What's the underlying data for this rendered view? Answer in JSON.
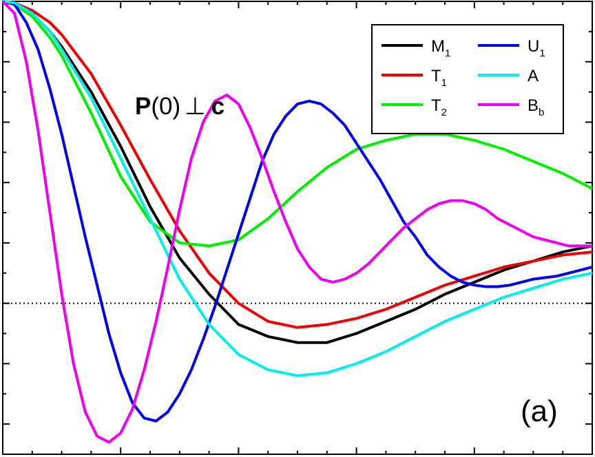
{
  "chart_data": {
    "type": "line",
    "title": "",
    "xlabel": "",
    "ylabel": "",
    "annotation": {
      "bold_p": "P",
      "arg": "(0)",
      "perp": "⊥",
      "bold_c": "c"
    },
    "panel_label": "(a)",
    "x_ticks_major_count": 5,
    "xlim": [
      0,
      1
    ],
    "ylim": [
      -0.5,
      1.0
    ],
    "y_ticks": [
      -0.4,
      -0.2,
      0.0,
      0.2,
      0.4,
      0.6,
      0.8,
      1.0
    ],
    "zero_line": true,
    "grid": false,
    "legend_position": "top-right",
    "series": [
      {
        "name_main": "M",
        "name_sub": "1",
        "color": "#000000",
        "x": [
          0,
          0.02,
          0.05,
          0.08,
          0.1,
          0.15,
          0.2,
          0.25,
          0.3,
          0.35,
          0.4,
          0.45,
          0.5,
          0.55,
          0.6,
          0.65,
          0.7,
          0.75,
          0.8,
          0.85,
          0.9,
          0.95,
          1.0
        ],
        "y": [
          1.0,
          0.995,
          0.96,
          0.9,
          0.85,
          0.7,
          0.52,
          0.32,
          0.15,
          0.03,
          -0.07,
          -0.11,
          -0.13,
          -0.13,
          -0.1,
          -0.06,
          -0.02,
          0.03,
          0.07,
          0.11,
          0.14,
          0.17,
          0.19
        ]
      },
      {
        "name_main": "T",
        "name_sub": "1",
        "color": "#ee0000",
        "x": [
          0,
          0.02,
          0.05,
          0.08,
          0.1,
          0.15,
          0.2,
          0.25,
          0.3,
          0.35,
          0.4,
          0.45,
          0.5,
          0.55,
          0.6,
          0.65,
          0.7,
          0.75,
          0.8,
          0.85,
          0.9,
          0.95,
          1.0
        ],
        "y": [
          1.0,
          0.995,
          0.97,
          0.93,
          0.89,
          0.76,
          0.59,
          0.41,
          0.24,
          0.1,
          0.0,
          -0.06,
          -0.08,
          -0.07,
          -0.05,
          -0.02,
          0.02,
          0.06,
          0.09,
          0.12,
          0.14,
          0.16,
          0.17
        ]
      },
      {
        "name_main": "T",
        "name_sub": "2",
        "color": "#00ee00",
        "x": [
          0,
          0.02,
          0.05,
          0.08,
          0.1,
          0.15,
          0.2,
          0.25,
          0.3,
          0.35,
          0.4,
          0.45,
          0.5,
          0.55,
          0.6,
          0.65,
          0.7,
          0.75,
          0.8,
          0.85,
          0.9,
          0.95,
          1.0
        ],
        "y": [
          1.0,
          0.99,
          0.95,
          0.88,
          0.82,
          0.63,
          0.42,
          0.27,
          0.2,
          0.19,
          0.21,
          0.28,
          0.37,
          0.45,
          0.51,
          0.54,
          0.56,
          0.56,
          0.54,
          0.51,
          0.47,
          0.43,
          0.38
        ]
      },
      {
        "name_main": "U",
        "name_sub": "1",
        "color": "#0000ee",
        "x": [
          0,
          0.02,
          0.04,
          0.06,
          0.08,
          0.1,
          0.12,
          0.14,
          0.16,
          0.18,
          0.2,
          0.22,
          0.24,
          0.26,
          0.28,
          0.3,
          0.32,
          0.34,
          0.36,
          0.38,
          0.4,
          0.42,
          0.44,
          0.46,
          0.48,
          0.5,
          0.52,
          0.54,
          0.56,
          0.58,
          0.6,
          0.62,
          0.64,
          0.66,
          0.68,
          0.7,
          0.72,
          0.74,
          0.76,
          0.78,
          0.8,
          0.82,
          0.84,
          0.86,
          0.88,
          0.9,
          0.92,
          0.94,
          0.96,
          0.98,
          1.0
        ],
        "y": [
          1.0,
          0.99,
          0.93,
          0.84,
          0.71,
          0.56,
          0.39,
          0.22,
          0.06,
          -0.1,
          -0.23,
          -0.33,
          -0.38,
          -0.39,
          -0.36,
          -0.3,
          -0.22,
          -0.12,
          -0.01,
          0.11,
          0.23,
          0.35,
          0.47,
          0.56,
          0.62,
          0.66,
          0.67,
          0.66,
          0.63,
          0.59,
          0.53,
          0.47,
          0.41,
          0.34,
          0.27,
          0.22,
          0.16,
          0.12,
          0.09,
          0.07,
          0.06,
          0.055,
          0.055,
          0.06,
          0.07,
          0.08,
          0.085,
          0.09,
          0.1,
          0.11,
          0.12
        ]
      },
      {
        "name_main": "A",
        "name_sub": "",
        "color": "#00eeee",
        "x": [
          0,
          0.02,
          0.05,
          0.08,
          0.1,
          0.15,
          0.2,
          0.25,
          0.3,
          0.35,
          0.4,
          0.45,
          0.5,
          0.55,
          0.6,
          0.65,
          0.7,
          0.75,
          0.8,
          0.85,
          0.9,
          0.95,
          1.0
        ],
        "y": [
          1.0,
          0.995,
          0.96,
          0.9,
          0.84,
          0.68,
          0.48,
          0.28,
          0.08,
          -0.07,
          -0.17,
          -0.22,
          -0.24,
          -0.23,
          -0.2,
          -0.16,
          -0.11,
          -0.06,
          -0.02,
          0.02,
          0.05,
          0.08,
          0.1
        ]
      },
      {
        "name_main": "B",
        "name_sub": "b",
        "color": "#ee00ee",
        "x": [
          0,
          0.02,
          0.04,
          0.06,
          0.08,
          0.1,
          0.12,
          0.14,
          0.16,
          0.18,
          0.2,
          0.22,
          0.24,
          0.26,
          0.28,
          0.3,
          0.32,
          0.34,
          0.36,
          0.38,
          0.4,
          0.42,
          0.44,
          0.46,
          0.48,
          0.5,
          0.52,
          0.54,
          0.56,
          0.58,
          0.6,
          0.62,
          0.64,
          0.66,
          0.68,
          0.7,
          0.72,
          0.74,
          0.76,
          0.78,
          0.8,
          0.82,
          0.84,
          0.86,
          0.88,
          0.9,
          0.92,
          0.94,
          0.96,
          0.98,
          1.0
        ],
        "y": [
          1.0,
          0.96,
          0.8,
          0.57,
          0.3,
          0.03,
          -0.2,
          -0.36,
          -0.44,
          -0.46,
          -0.43,
          -0.35,
          -0.22,
          -0.06,
          0.12,
          0.31,
          0.48,
          0.6,
          0.67,
          0.69,
          0.66,
          0.58,
          0.48,
          0.37,
          0.27,
          0.18,
          0.12,
          0.08,
          0.07,
          0.08,
          0.1,
          0.13,
          0.17,
          0.21,
          0.25,
          0.28,
          0.31,
          0.33,
          0.34,
          0.34,
          0.33,
          0.31,
          0.28,
          0.26,
          0.24,
          0.22,
          0.21,
          0.2,
          0.19,
          0.19,
          0.19
        ]
      }
    ]
  }
}
